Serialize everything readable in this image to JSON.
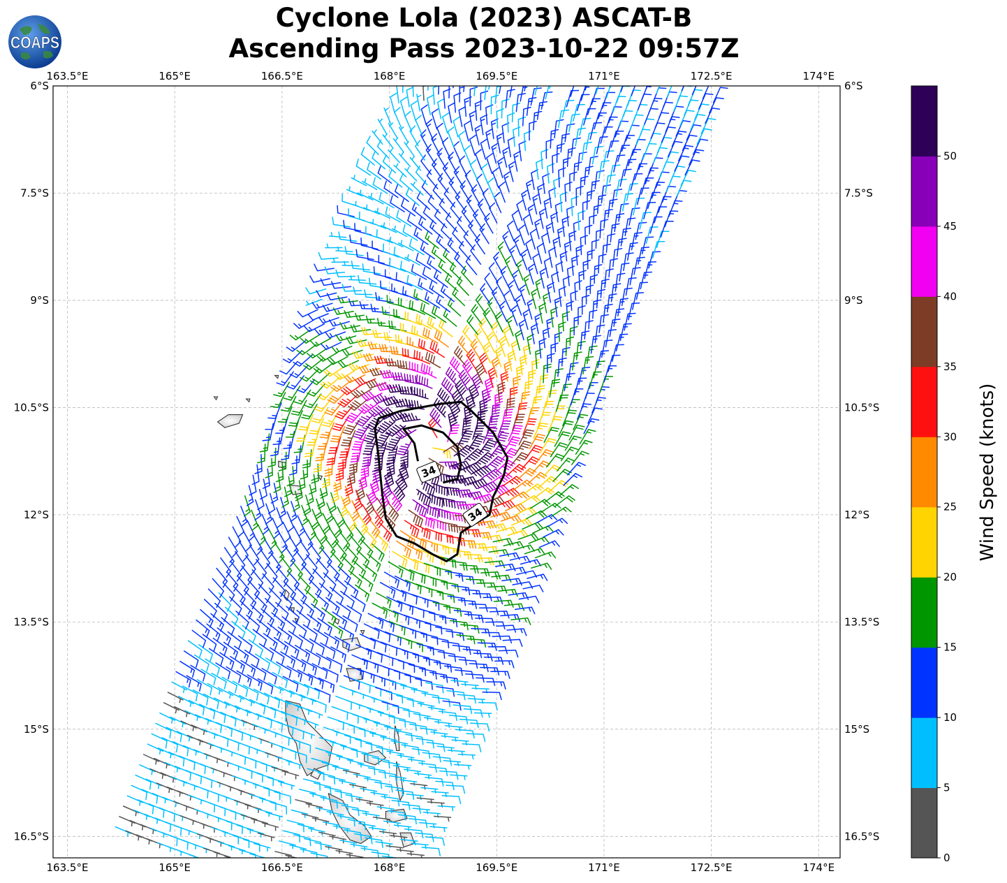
{
  "title": {
    "line1": "Cyclone Lola (2023) ASCAT-B",
    "line2": "Ascending Pass 2023-10-22 09:57Z"
  },
  "logo": {
    "text": "COAPS"
  },
  "colorbar": {
    "label": "Wind Speed (knots)",
    "ticks": [
      "0",
      "5",
      "10",
      "15",
      "20",
      "25",
      "30",
      "35",
      "40",
      "45",
      "50"
    ],
    "colors": [
      "#555555",
      "#00bfff",
      "#0033ff",
      "#009600",
      "#ffd400",
      "#ff8a00",
      "#ff1010",
      "#7d3c25",
      "#f200f2",
      "#8800b8",
      "#2e0058"
    ]
  },
  "chart_data": {
    "type": "map",
    "projection": "PlateCarree",
    "extent_lon": [
      163.3,
      174.3
    ],
    "extent_lat": [
      -16.8,
      -6.0
    ],
    "x_ticks": [
      "163.5°E",
      "165°E",
      "166.5°E",
      "168°E",
      "169.5°E",
      "171°E",
      "172.5°E",
      "174°E"
    ],
    "y_ticks": [
      "6°S",
      "7.5°S",
      "9°S",
      "10.5°S",
      "12°S",
      "13.5°S",
      "15°S",
      "16.5°S"
    ],
    "x_tick_values": [
      163.5,
      165,
      166.5,
      168,
      169.5,
      171,
      172.5,
      174
    ],
    "y_tick_values": [
      -6,
      -7.5,
      -9,
      -10.5,
      -12,
      -13.5,
      -15,
      -16.5
    ],
    "grid": true,
    "storm_center": {
      "lon": 168.6,
      "lat": -11.0
    },
    "contour": {
      "level_label": "34",
      "units": "knots"
    },
    "swath": {
      "width_deg": 4.2,
      "heading_deg": 21
    }
  }
}
